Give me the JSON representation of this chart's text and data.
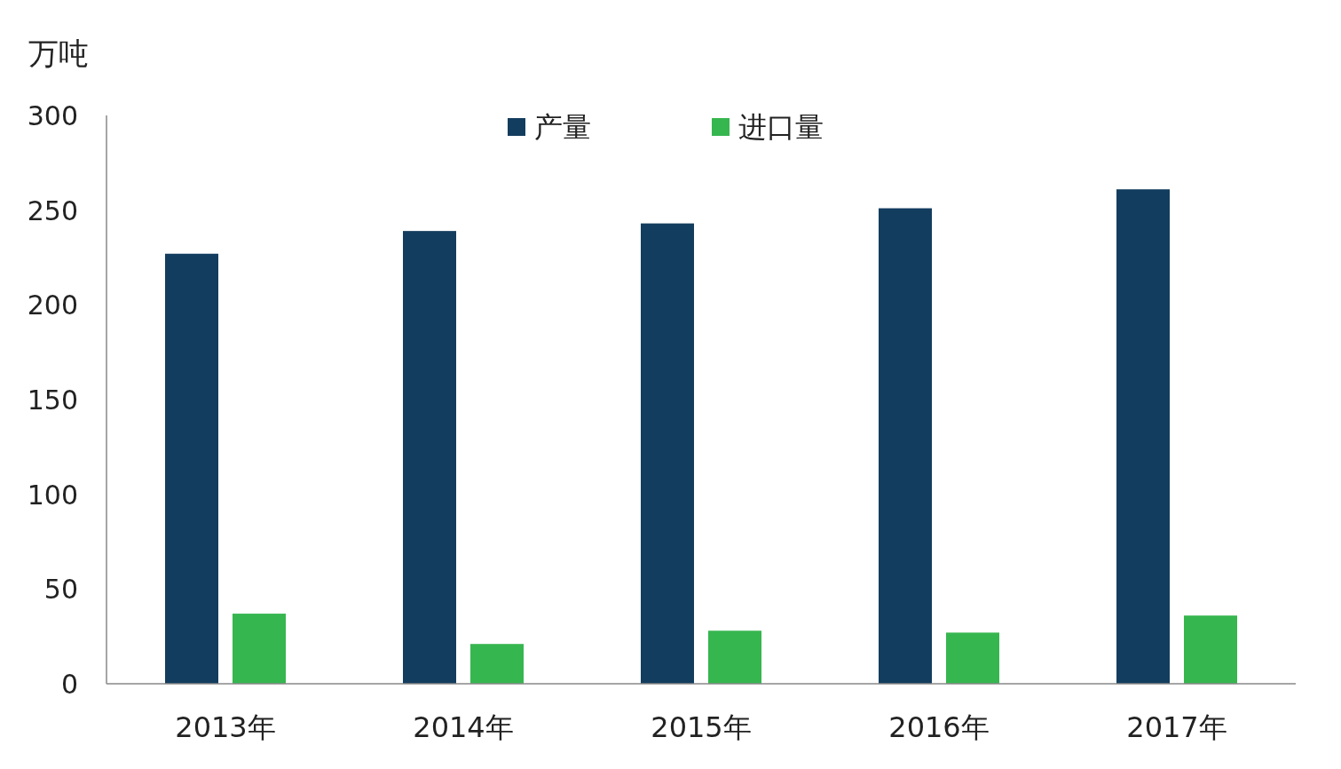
{
  "chart_data": {
    "type": "bar",
    "ylabel": "万吨",
    "categories": [
      "2013年",
      "2014年",
      "2015年",
      "2016年",
      "2017年"
    ],
    "series": [
      {
        "name": "产量",
        "color": "#133d5e",
        "values": [
          227,
          239,
          243,
          251,
          261
        ]
      },
      {
        "name": "进口量",
        "color": "#36b64f",
        "values": [
          37,
          21,
          28,
          27,
          36
        ]
      }
    ],
    "ylim": [
      0,
      300
    ],
    "yticks": [
      0,
      50,
      100,
      150,
      200,
      250,
      300
    ],
    "legend": "top"
  }
}
